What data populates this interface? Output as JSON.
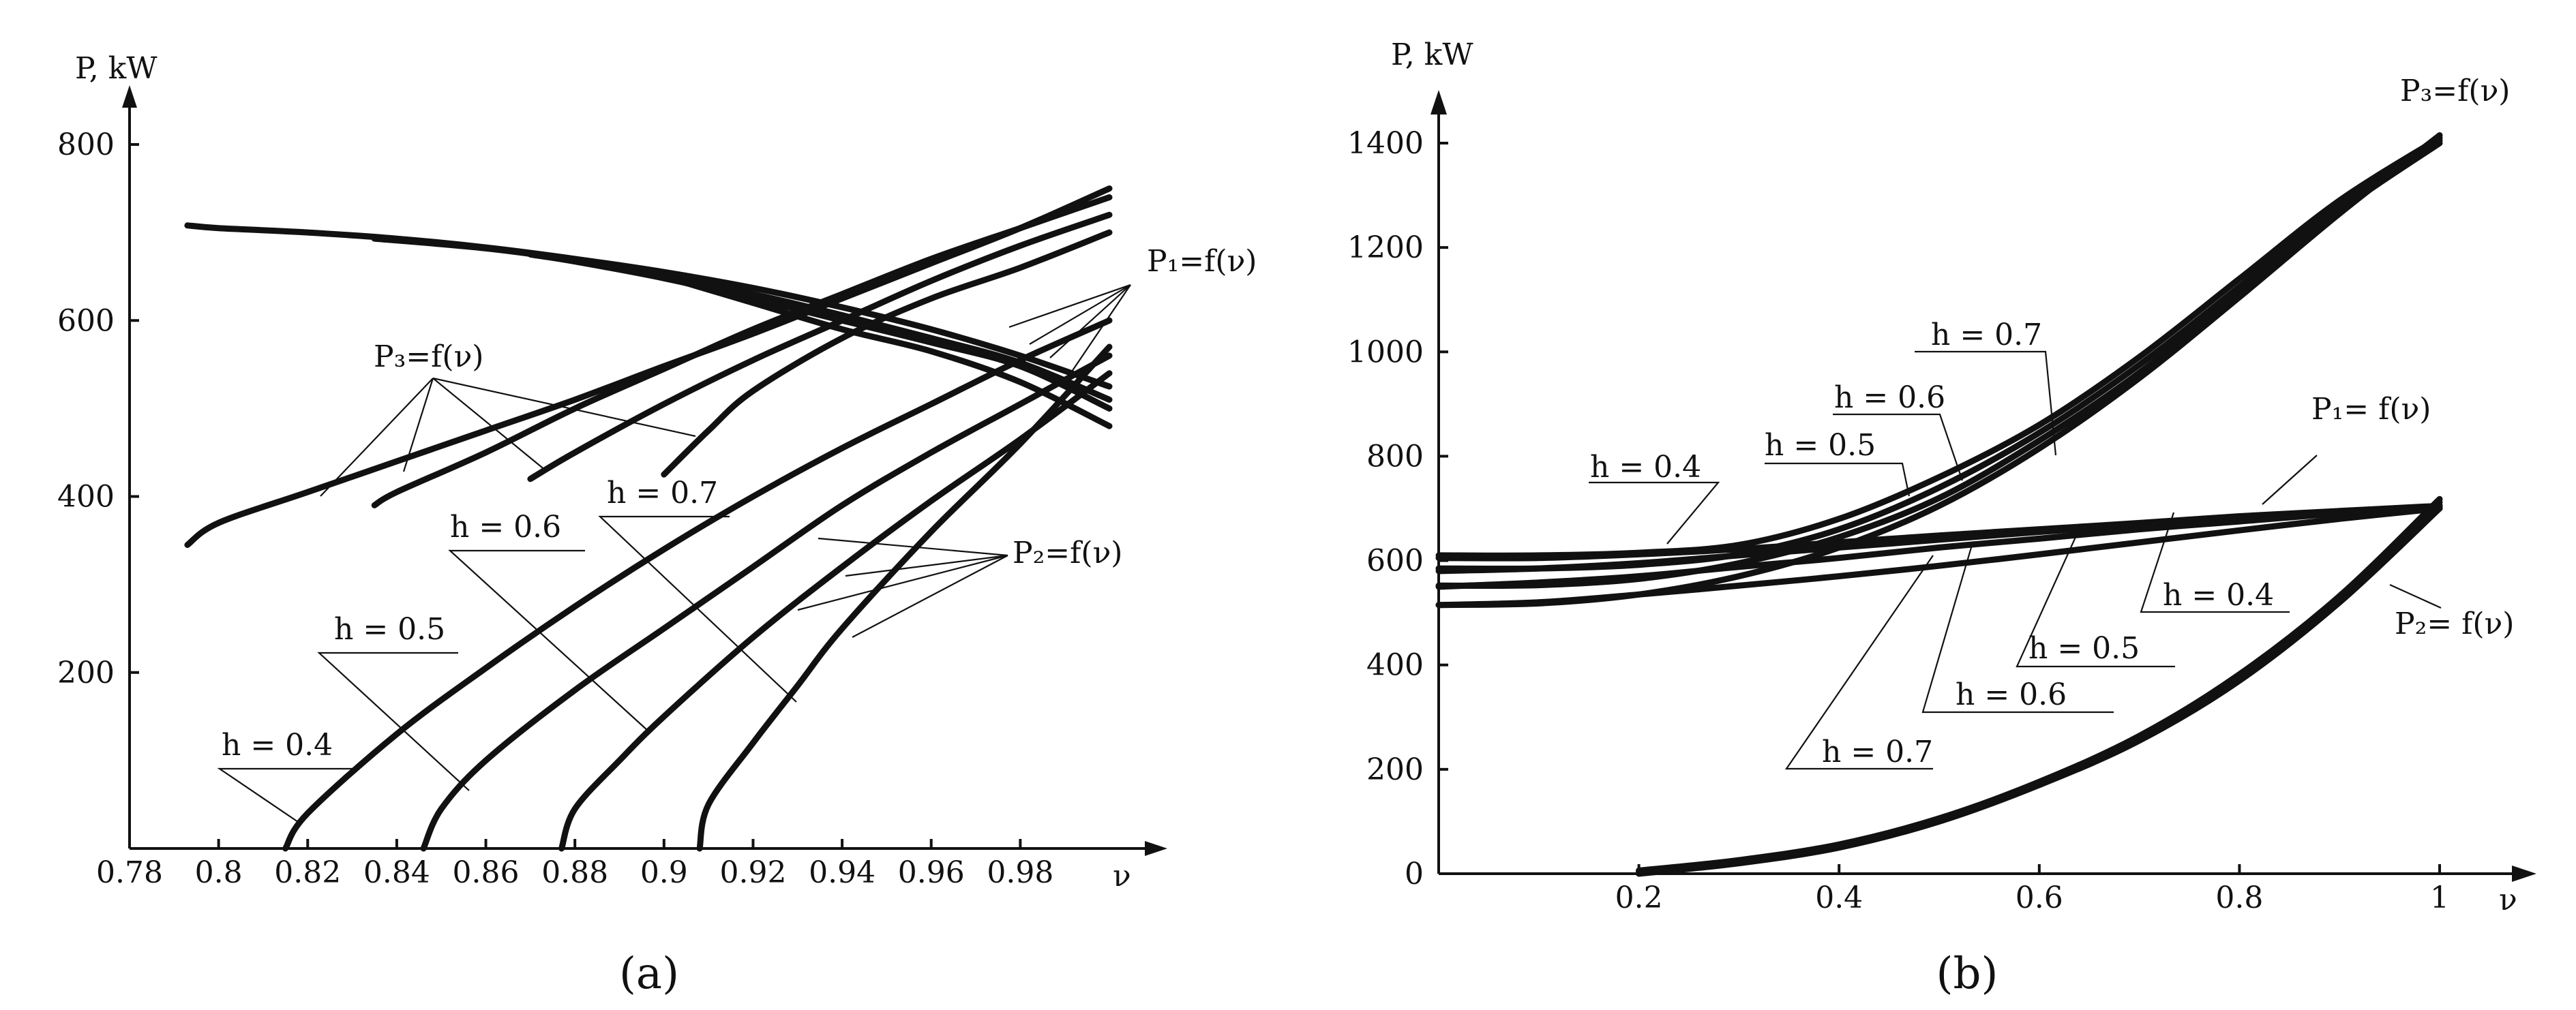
{
  "chart_data": [
    {
      "type": "line",
      "caption": "(a)",
      "ylabel": "P, kW",
      "xlabel": "ν",
      "xlim": [
        0.78,
        1.0
      ],
      "ylim": [
        0,
        820
      ],
      "xticks": [
        "0.78",
        "0.8",
        "0.82",
        "0.84",
        "0.86",
        "0.88",
        "0.9",
        "0.92",
        "0.94",
        "0.96",
        "0.98"
      ],
      "yticks": [
        "200",
        "400",
        "600",
        "800"
      ],
      "annotations": {
        "p1": "P₁=f(ν)",
        "p2": "P₂=f(ν)",
        "p3": "P₃=f(ν)",
        "h04": "h = 0.4",
        "h05": "h = 0.5",
        "h06": "h = 0.6",
        "h07": "h = 0.7"
      },
      "series": [
        {
          "group": "P1",
          "h": "0.4",
          "x": [
            0.793,
            0.8,
            0.82,
            0.84,
            0.86,
            0.88,
            0.9,
            0.92,
            0.94,
            0.96,
            0.98,
            1.0
          ],
          "y": [
            708,
            705,
            700,
            693,
            683,
            670,
            655,
            637,
            615,
            590,
            560,
            525
          ]
        },
        {
          "group": "P1",
          "h": "0.5",
          "x": [
            0.835,
            0.86,
            0.88,
            0.9,
            0.92,
            0.94,
            0.96,
            0.98,
            1.0
          ],
          "y": [
            693,
            682,
            668,
            650,
            630,
            606,
            580,
            552,
            510
          ]
        },
        {
          "group": "P1",
          "h": "0.6",
          "x": [
            0.87,
            0.88,
            0.9,
            0.92,
            0.94,
            0.96,
            0.98,
            1.0
          ],
          "y": [
            675,
            667,
            648,
            625,
            600,
            575,
            548,
            500
          ]
        },
        {
          "group": "P1",
          "h": "0.7",
          "x": [
            0.9,
            0.92,
            0.94,
            0.96,
            0.98,
            1.0
          ],
          "y": [
            650,
            620,
            590,
            565,
            530,
            480
          ]
        },
        {
          "group": "P2",
          "h": "0.4",
          "x": [
            0.815,
            0.82,
            0.84,
            0.86,
            0.88,
            0.9,
            0.92,
            0.94,
            0.96,
            0.98,
            1.0
          ],
          "y": [
            0,
            40,
            130,
            205,
            275,
            340,
            400,
            455,
            505,
            555,
            600
          ]
        },
        {
          "group": "P2",
          "h": "0.5",
          "x": [
            0.846,
            0.85,
            0.86,
            0.88,
            0.9,
            0.92,
            0.94,
            0.96,
            0.98,
            1.0
          ],
          "y": [
            0,
            45,
            100,
            180,
            250,
            320,
            390,
            450,
            505,
            560
          ]
        },
        {
          "group": "P2",
          "h": "0.6",
          "x": [
            0.877,
            0.88,
            0.89,
            0.9,
            0.92,
            0.94,
            0.96,
            0.98,
            1.0
          ],
          "y": [
            0,
            45,
            100,
            150,
            240,
            320,
            395,
            465,
            540
          ]
        },
        {
          "group": "P2",
          "h": "0.7",
          "x": [
            0.908,
            0.91,
            0.92,
            0.93,
            0.94,
            0.96,
            0.98,
            1.0
          ],
          "y": [
            0,
            50,
            120,
            185,
            250,
            360,
            460,
            570
          ]
        },
        {
          "group": "P3",
          "h": "0.4",
          "x": [
            0.793,
            0.8,
            0.82,
            0.84,
            0.86,
            0.88,
            0.9,
            0.92,
            0.94,
            0.96,
            0.98,
            1.0
          ],
          "y": [
            345,
            370,
            405,
            440,
            475,
            510,
            548,
            585,
            625,
            665,
            705,
            750
          ]
        },
        {
          "group": "P3",
          "h": "0.5",
          "x": [
            0.835,
            0.84,
            0.86,
            0.88,
            0.9,
            0.92,
            0.94,
            0.96,
            0.98,
            1.0
          ],
          "y": [
            390,
            405,
            450,
            500,
            545,
            590,
            630,
            670,
            705,
            740
          ]
        },
        {
          "group": "P3",
          "h": "0.6",
          "x": [
            0.87,
            0.88,
            0.9,
            0.92,
            0.94,
            0.96,
            0.98,
            1.0
          ],
          "y": [
            420,
            450,
            505,
            555,
            600,
            645,
            685,
            720
          ]
        },
        {
          "group": "P3",
          "h": "0.7",
          "x": [
            0.9,
            0.91,
            0.92,
            0.94,
            0.96,
            0.98,
            1.0
          ],
          "y": [
            425,
            475,
            520,
            580,
            625,
            660,
            700
          ]
        }
      ]
    },
    {
      "type": "line",
      "caption": "(b)",
      "ylabel": "P, kW",
      "xlabel": "ν",
      "xlim": [
        0.0,
        1.0
      ],
      "ylim": [
        0,
        1420
      ],
      "xticks": [
        "0.2",
        "0.4",
        "0.6",
        "0.8",
        "1"
      ],
      "yticks": [
        "0",
        "200",
        "400",
        "600",
        "800",
        "1000",
        "1200",
        "1400"
      ],
      "annotations": {
        "p1": "P₁=  f(ν)",
        "p2": "P₂= f(ν)",
        "p3": "P₃=f(ν)",
        "h04": "h = 0.4",
        "h05": "h = 0.5",
        "h06": "h = 0.6",
        "h07": "h = 0.7"
      },
      "series": [
        {
          "group": "P1",
          "h": "0.4",
          "x": [
            0.0,
            0.1,
            0.2,
            0.3,
            0.4,
            0.5,
            0.6,
            0.7,
            0.8,
            0.9,
            1.0
          ],
          "y": [
            605,
            605,
            612,
            622,
            635,
            648,
            660,
            672,
            685,
            695,
            705
          ]
        },
        {
          "group": "P1",
          "h": "0.5",
          "x": [
            0.0,
            0.1,
            0.2,
            0.3,
            0.4,
            0.5,
            0.6,
            0.7,
            0.8,
            0.9,
            1.0
          ],
          "y": [
            580,
            585,
            595,
            610,
            625,
            640,
            655,
            668,
            680,
            692,
            702
          ]
        },
        {
          "group": "P1",
          "h": "0.6",
          "x": [
            0.0,
            0.1,
            0.2,
            0.3,
            0.4,
            0.5,
            0.6,
            0.7,
            0.8,
            0.9,
            1.0
          ],
          "y": [
            550,
            558,
            570,
            588,
            605,
            625,
            642,
            660,
            675,
            690,
            700
          ]
        },
        {
          "group": "P1",
          "h": "0.7",
          "x": [
            0.0,
            0.1,
            0.2,
            0.3,
            0.4,
            0.5,
            0.6,
            0.7,
            0.8,
            0.9,
            1.0
          ],
          "y": [
            515,
            520,
            535,
            552,
            570,
            590,
            612,
            635,
            658,
            680,
            700
          ]
        },
        {
          "group": "P2",
          "h": "0.4",
          "x": [
            0.2,
            0.3,
            0.4,
            0.5,
            0.6,
            0.7,
            0.8,
            0.9,
            1.0
          ],
          "y": [
            0,
            20,
            50,
            100,
            170,
            255,
            370,
            520,
            700
          ]
        },
        {
          "group": "P2",
          "h": "0.5",
          "x": [
            0.2,
            0.3,
            0.4,
            0.5,
            0.6,
            0.7,
            0.8,
            0.9,
            1.0
          ],
          "y": [
            2,
            22,
            52,
            102,
            172,
            258,
            374,
            524,
            706
          ]
        },
        {
          "group": "P2",
          "h": "0.6",
          "x": [
            0.2,
            0.3,
            0.4,
            0.5,
            0.6,
            0.7,
            0.8,
            0.9,
            1.0
          ],
          "y": [
            4,
            24,
            54,
            104,
            174,
            261,
            378,
            528,
            712
          ]
        },
        {
          "group": "P2",
          "h": "0.7",
          "x": [
            0.2,
            0.3,
            0.4,
            0.5,
            0.6,
            0.7,
            0.8,
            0.9,
            1.0
          ],
          "y": [
            6,
            26,
            56,
            106,
            176,
            264,
            382,
            532,
            718
          ]
        },
        {
          "group": "P3",
          "h": "0.4",
          "x": [
            0.0,
            0.1,
            0.2,
            0.3,
            0.4,
            0.5,
            0.6,
            0.7,
            0.8,
            0.9,
            1.0
          ],
          "y": [
            610,
            610,
            615,
            630,
            680,
            760,
            860,
            990,
            1140,
            1290,
            1410
          ]
        },
        {
          "group": "P3",
          "h": "0.5",
          "x": [
            0.0,
            0.1,
            0.2,
            0.3,
            0.4,
            0.5,
            0.6,
            0.7,
            0.8,
            0.9,
            1.0
          ],
          "y": [
            585,
            585,
            592,
            612,
            660,
            740,
            845,
            975,
            1125,
            1280,
            1405
          ]
        },
        {
          "group": "P3",
          "h": "0.6",
          "x": [
            0.0,
            0.1,
            0.2,
            0.3,
            0.4,
            0.5,
            0.6,
            0.7,
            0.8,
            0.9,
            1.0
          ],
          "y": [
            552,
            553,
            565,
            595,
            645,
            720,
            830,
            960,
            1115,
            1270,
            1400
          ]
        },
        {
          "group": "P3",
          "h": "0.7",
          "x": [
            0.0,
            0.1,
            0.2,
            0.3,
            0.4,
            0.5,
            0.6,
            0.7,
            0.8,
            0.9,
            1.0
          ],
          "y": [
            515,
            518,
            535,
            570,
            625,
            705,
            815,
            950,
            1105,
            1265,
            1415
          ]
        }
      ]
    }
  ]
}
